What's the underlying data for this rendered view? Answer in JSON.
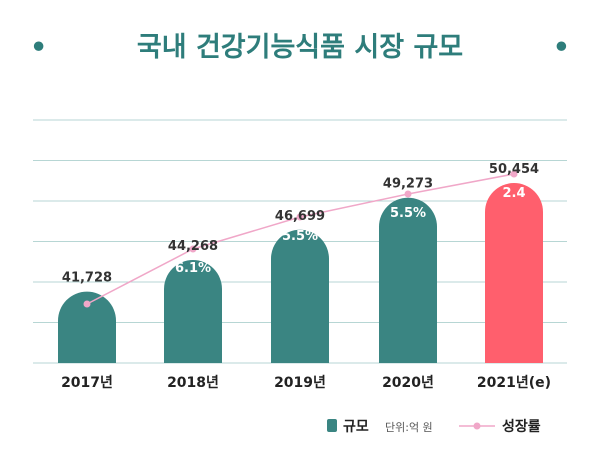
{
  "title": "국내 건강기능식품 시장 규모",
  "title_bullet": "•",
  "colors": {
    "bar": "#3a8582",
    "bar_highlight": "#ff5f6d",
    "line": "#f0a7c8",
    "title": "#2e7d7b",
    "grid": "#b7d6d4"
  },
  "legend": {
    "bar_label": "규모",
    "unit": "단위:억 원",
    "line_label": "성장률"
  },
  "chart_data": {
    "type": "bar",
    "title": "국내 건강기능식품 시장 규모",
    "categories": [
      "2017년",
      "2018년",
      "2019년",
      "2020년",
      "2021년(e)"
    ],
    "series": [
      {
        "name": "규모",
        "type": "bar",
        "values": [
          41728,
          44268,
          46699,
          49273,
          50454
        ],
        "labels": [
          "41,728",
          "44,268",
          "46,699",
          "49,273",
          "50,454"
        ]
      },
      {
        "name": "성장률",
        "type": "line",
        "values": [
          null,
          6.1,
          5.5,
          5.5,
          2.4
        ],
        "labels": [
          "",
          "6.1%",
          "5.5%",
          "5.5%",
          "2.4"
        ]
      }
    ],
    "highlight_index": 4,
    "grid": true,
    "legend_position": "bottom-right"
  }
}
